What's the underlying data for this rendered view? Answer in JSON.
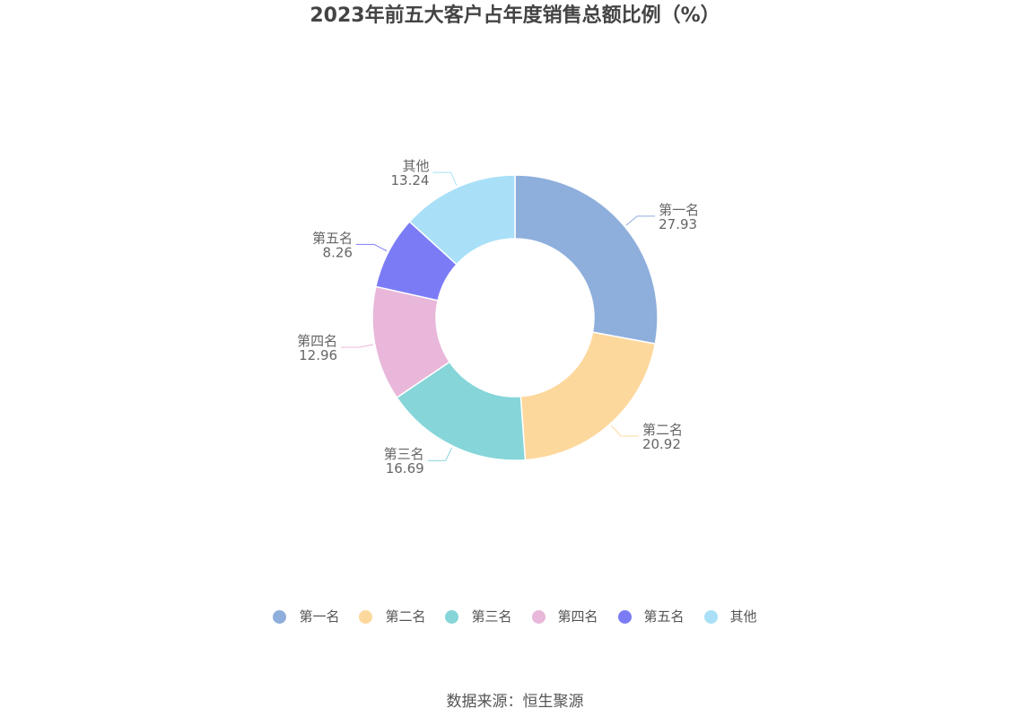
{
  "title": "2023年前五大客户占年度销售总额比例（%）",
  "source": "数据来源：恒生聚源",
  "chart_data": {
    "type": "pie",
    "donut": true,
    "title": "2023年前五大客户占年度销售总额比例（%）",
    "legend_position": "bottom",
    "categories": [
      "第一名",
      "第二名",
      "第三名",
      "第四名",
      "第五名",
      "其他"
    ],
    "values": [
      27.93,
      20.92,
      16.69,
      12.96,
      8.26,
      13.24
    ],
    "value_labels": [
      "27.93",
      "20.92",
      "16.69",
      "12.96",
      "8.26",
      "13.24"
    ],
    "colors": [
      "#8eaedc",
      "#fdd89d",
      "#86d5d9",
      "#e8b7d9",
      "#7b7cf5",
      "#a9e0f8"
    ]
  }
}
